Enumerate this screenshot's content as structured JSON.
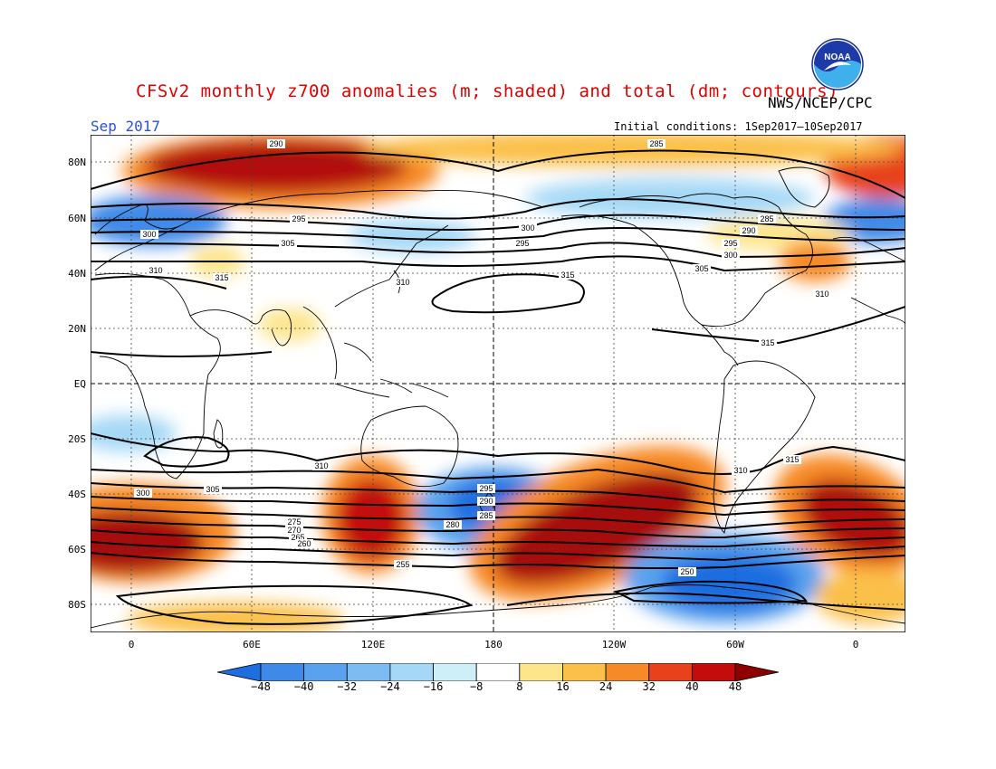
{
  "header": {
    "title": "CFSv2 monthly z700 anomalies (m; shaded) and total (dm; contours)",
    "agency": "NWS/NCEP/CPC",
    "month": "Sep 2017",
    "initial_conditions": "Initial conditions: 1Sep2017–10Sep2017",
    "logo_text": "NOAA"
  },
  "map": {
    "lat_labels": [
      "80N",
      "60N",
      "40N",
      "20N",
      "EQ",
      "20S",
      "40S",
      "60S",
      "80S"
    ],
    "lon_labels": [
      "0",
      "60E",
      "120E",
      "180",
      "120W",
      "60W",
      "0"
    ],
    "contour_labels": [
      "290",
      "295",
      "300",
      "305",
      "310",
      "315",
      "285",
      "295",
      "300",
      "310",
      "315",
      "285",
      "290",
      "295",
      "300",
      "305",
      "310",
      "315",
      "310",
      "305",
      "300",
      "295",
      "290",
      "285",
      "275",
      "270",
      "265",
      "260",
      "255",
      "250",
      "280",
      "310",
      "315"
    ]
  },
  "colorbar": {
    "labels": [
      "-48",
      "-40",
      "-32",
      "-24",
      "-16",
      "-8",
      "8",
      "16",
      "24",
      "32",
      "40",
      "48"
    ],
    "colors": [
      "#1e6ee0",
      "#3f8ae8",
      "#5aa2ee",
      "#7cbcf2",
      "#a4d8f6",
      "#cfeff8",
      "#ffffff",
      "#fde58c",
      "#fbc04a",
      "#f78a28",
      "#e8421c",
      "#c40c0c",
      "#8e0000"
    ]
  }
}
